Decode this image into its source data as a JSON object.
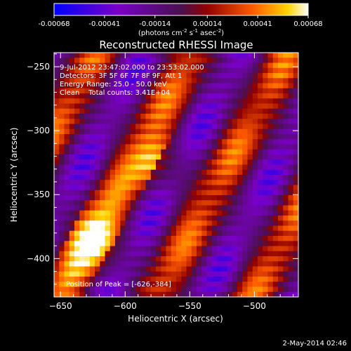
{
  "chart_data": {
    "type": "heatmap",
    "title": "Reconstructed RHESSI Image",
    "xlabel": "Heliocentric X (arcsec)",
    "ylabel": "Heliocentric Y (arcsec)",
    "xlim": [
      -655,
      -466
    ],
    "ylim": [
      -430,
      -239
    ],
    "xticks": [
      -650,
      -600,
      -550,
      -500
    ],
    "yticks": [
      -250,
      -300,
      -350,
      -400
    ],
    "colorbar": {
      "min": -0.00068,
      "max": 0.00068,
      "ticks": [
        "-0.00068",
        "-0.00041",
        "-0.00014",
        "0.00014",
        "0.00041",
        "0.00068"
      ],
      "unit_main": "(photons cm",
      "unit_sup1": "-2",
      "unit_s": " s",
      "unit_sup2": "-1",
      "unit_asec": " asec",
      "unit_sup3": "-2",
      "unit_close": ")",
      "colors": [
        "#0000ff",
        "#7a00c8",
        "#4a1050",
        "#900000",
        "#ff5a00",
        "#ffd400",
        "#ffffff"
      ]
    },
    "annotations": [
      "9-Jul-2012 23:47:02.000 to 23:53:02.000",
      "Detectors: 3F 5F 6F 7F 8F 9F, Att 1",
      "Energy Range: 25.0 - 50.0 keV",
      "Clean    Total counts: 3.41E+04"
    ],
    "peak_label": "Position of Peak = [-626,-384]",
    "peak": [
      -626,
      -384
    ],
    "grid": false
  },
  "footer": {
    "date": "2-May-2014 02:46"
  }
}
